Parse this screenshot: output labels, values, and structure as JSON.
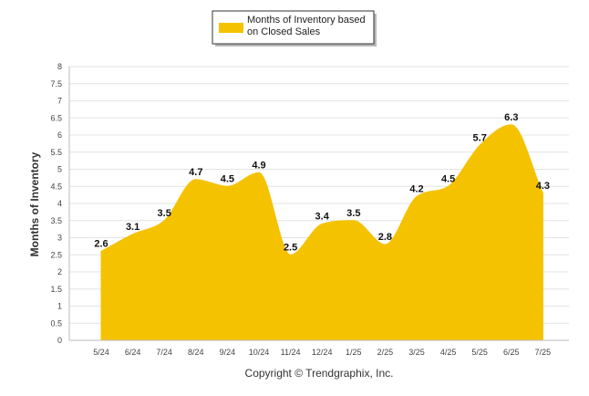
{
  "chart_data": {
    "type": "area",
    "categories": [
      "5/24",
      "6/24",
      "7/24",
      "8/24",
      "9/24",
      "10/24",
      "11/24",
      "12/24",
      "1/25",
      "2/25",
      "3/25",
      "4/25",
      "5/25",
      "6/25",
      "7/25"
    ],
    "series": [
      {
        "name": "Months of Inventory based on Closed Sales",
        "values": [
          2.6,
          3.1,
          3.5,
          4.7,
          4.5,
          4.9,
          2.5,
          3.4,
          3.5,
          2.8,
          4.2,
          4.5,
          5.7,
          6.3,
          4.3
        ]
      }
    ],
    "ylabel": "Months of Inventory",
    "xlabel": "",
    "ylim": [
      0,
      8
    ],
    "yticks": [
      "0",
      "0.5",
      "1",
      "1.5",
      "2",
      "2.5",
      "3",
      "3.5",
      "4",
      "4.5",
      "5",
      "5.5",
      "6",
      "6.5",
      "7",
      "7.5",
      "8"
    ],
    "data_labels": [
      "2.6",
      "3.1",
      "3.5",
      "4.7",
      "4.5",
      "4.9",
      "2.5",
      "3.4",
      "3.5",
      "2.8",
      "4.2",
      "4.5",
      "5.7",
      "6.3",
      "4.3"
    ],
    "grid": true,
    "legend_position": "top-center",
    "colors": {
      "area": "#F5C200",
      "grid": "#e4e4e4"
    }
  },
  "legend": {
    "line1": "Months of Inventory based",
    "line2": "on Closed Sales",
    "swatch_color": "#F5C200"
  },
  "footer": {
    "copyright": "Copyright © Trendgraphix, Inc."
  }
}
